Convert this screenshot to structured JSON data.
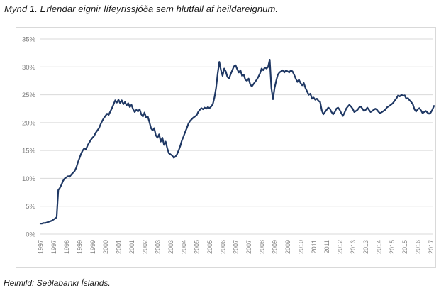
{
  "title": "Mynd 1. Erlendar eignir lífeyrissjóða sem hlutfall af heildareignum.",
  "caption": "Heimild: Seðlabanki Íslands.",
  "chart_data": {
    "type": "line",
    "title": "Mynd 1. Erlendar eignir lífeyrissjóða sem hlutfall af heildareignum.",
    "source": "Heimild: Seðlabanki Íslands.",
    "xlabel": "",
    "ylabel": "",
    "x_freq": "monthly",
    "x_start": "1997-01",
    "x_end": "2017-03",
    "x_tick_interval_months": 8,
    "x_tick_labels": [
      "1997",
      "1997",
      "1998",
      "1999",
      "1999",
      "2000",
      "2001",
      "2001",
      "2002",
      "2003",
      "2003",
      "2004",
      "2005",
      "2005",
      "2006",
      "2007",
      "2007",
      "2008",
      "2009",
      "2009",
      "2010",
      "2011",
      "2011",
      "2012",
      "2013",
      "2013",
      "2014",
      "2015",
      "2015",
      "2016",
      "2017"
    ],
    "y_ticks": [
      "35%",
      "30%",
      "25%",
      "20%",
      "15%",
      "10%",
      "5%",
      "0%"
    ],
    "ylim": [
      0,
      35
    ],
    "grid": "horizontal",
    "legend": "none",
    "line_color": "#1f3864",
    "grid_color": "#d9d9d9",
    "tick_label_color": "#7f7f7f",
    "series": [
      {
        "name": "Erlendar eignir lífeyrissjóða sem hlutfall af heildareignum (%)",
        "values": [
          1.9,
          1.9,
          2.0,
          2.0,
          2.1,
          2.2,
          2.3,
          2.4,
          2.6,
          2.8,
          3.0,
          7.9,
          8.3,
          8.9,
          9.6,
          10.0,
          10.2,
          10.4,
          10.3,
          10.7,
          11.0,
          11.3,
          11.9,
          12.8,
          13.6,
          14.4,
          15.0,
          15.4,
          15.2,
          15.9,
          16.4,
          16.9,
          17.3,
          17.6,
          18.2,
          18.6,
          19.0,
          19.7,
          20.3,
          20.8,
          21.2,
          21.6,
          21.4,
          22.0,
          22.6,
          23.3,
          24.0,
          23.6,
          24.1,
          23.5,
          24.0,
          23.3,
          23.7,
          23.1,
          23.5,
          22.8,
          23.2,
          22.4,
          21.9,
          22.3,
          22.0,
          22.4,
          21.5,
          21.1,
          21.8,
          20.9,
          21.1,
          20.1,
          19.0,
          18.6,
          19.0,
          17.7,
          17.3,
          17.9,
          16.6,
          17.3,
          16.0,
          16.6,
          15.4,
          14.5,
          14.3,
          14.1,
          13.7,
          13.9,
          14.3,
          15.0,
          15.8,
          16.8,
          17.5,
          18.3,
          19.0,
          19.8,
          20.3,
          20.6,
          20.9,
          21.1,
          21.3,
          21.9,
          22.3,
          22.6,
          22.4,
          22.7,
          22.5,
          22.8,
          22.6,
          22.9,
          23.3,
          24.5,
          26.2,
          28.8,
          30.9,
          29.4,
          28.4,
          29.7,
          29.2,
          28.2,
          27.9,
          28.7,
          29.4,
          30.1,
          30.3,
          29.6,
          29.0,
          29.4,
          28.4,
          28.6,
          27.7,
          27.5,
          27.9,
          26.9,
          26.5,
          26.9,
          27.3,
          27.7,
          28.2,
          28.8,
          29.7,
          29.4,
          29.9,
          29.7,
          30.0,
          31.3,
          26.2,
          24.2,
          26.2,
          27.5,
          28.6,
          29.0,
          29.2,
          29.4,
          29.0,
          29.4,
          29.2,
          29.0,
          29.4,
          29.2,
          28.6,
          27.9,
          27.3,
          27.7,
          27.1,
          26.7,
          27.1,
          26.2,
          25.6,
          25.0,
          25.2,
          24.3,
          24.5,
          24.1,
          24.3,
          23.9,
          23.7,
          22.2,
          21.5,
          21.9,
          22.3,
          22.7,
          22.5,
          21.9,
          21.5,
          21.9,
          22.5,
          22.7,
          22.3,
          21.7,
          21.2,
          21.8,
          22.5,
          22.9,
          23.2,
          22.9,
          22.5,
          21.9,
          22.1,
          22.3,
          22.7,
          22.9,
          22.5,
          22.1,
          22.3,
          22.7,
          22.3,
          21.9,
          22.1,
          22.3,
          22.5,
          22.3,
          21.9,
          21.7,
          21.9,
          22.1,
          22.3,
          22.7,
          22.9,
          23.1,
          23.3,
          23.6,
          24.0,
          24.4,
          24.9,
          24.7,
          25.0,
          24.8,
          24.9,
          24.3,
          24.4,
          24.0,
          23.7,
          23.3,
          22.4,
          22.0,
          22.4,
          22.6,
          22.2,
          21.7,
          21.9,
          22.1,
          21.8,
          21.6,
          21.8,
          22.3,
          23.0
        ]
      }
    ]
  }
}
